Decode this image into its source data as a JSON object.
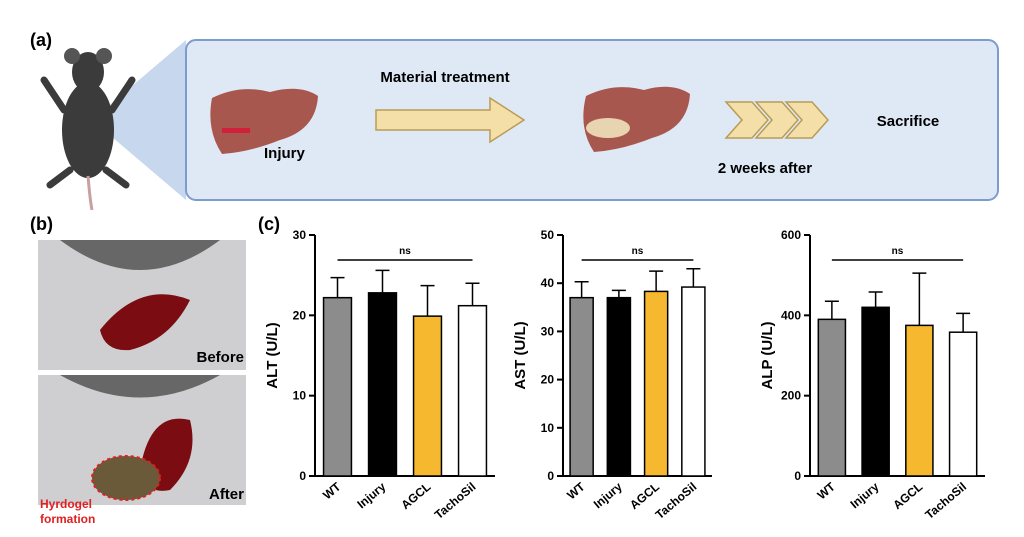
{
  "panel_labels": {
    "a": "(a)",
    "b": "(b)",
    "c": "(c)"
  },
  "diagram": {
    "step1": "Injury",
    "arrow_label": "Material treatment",
    "step2": "2 weeks after",
    "step3": "Sacrifice"
  },
  "photos": {
    "before": "Before",
    "after": "After",
    "hydrogel_label": [
      "Hyrdogel",
      "formation"
    ]
  },
  "chart_data": [
    {
      "type": "bar",
      "ylabel": "ALT (U/L)",
      "categories": [
        "WT",
        "Injury",
        "AGCL",
        "TachoSil"
      ],
      "values": [
        22.2,
        22.8,
        19.9,
        21.2
      ],
      "errors": [
        2.5,
        2.8,
        3.8,
        2.8
      ],
      "colors": [
        "#8c8c8c",
        "#000000",
        "#f5b82e",
        "#ffffff"
      ],
      "ylim": [
        0,
        30
      ],
      "yticks": [
        0,
        10,
        20,
        30
      ],
      "annotation": "ns"
    },
    {
      "type": "bar",
      "ylabel": "AST (U/L)",
      "categories": [
        "WT",
        "Injury",
        "AGCL",
        "TachoSil"
      ],
      "values": [
        37,
        37,
        38.3,
        39.2
      ],
      "errors": [
        3.3,
        1.5,
        4.2,
        3.8
      ],
      "colors": [
        "#8c8c8c",
        "#000000",
        "#f5b82e",
        "#ffffff"
      ],
      "ylim": [
        0,
        50
      ],
      "yticks": [
        0,
        10,
        20,
        30,
        40,
        50
      ],
      "annotation": "ns"
    },
    {
      "type": "bar",
      "ylabel": "ALP (U/L)",
      "categories": [
        "WT",
        "Injury",
        "AGCL",
        "TachoSil"
      ],
      "values": [
        390,
        420,
        375,
        358
      ],
      "errors": [
        45,
        38,
        130,
        47
      ],
      "colors": [
        "#8c8c8c",
        "#000000",
        "#f5b82e",
        "#ffffff"
      ],
      "ylim": [
        0,
        600
      ],
      "yticks": [
        0,
        200,
        400,
        600
      ],
      "annotation": "ns"
    }
  ]
}
